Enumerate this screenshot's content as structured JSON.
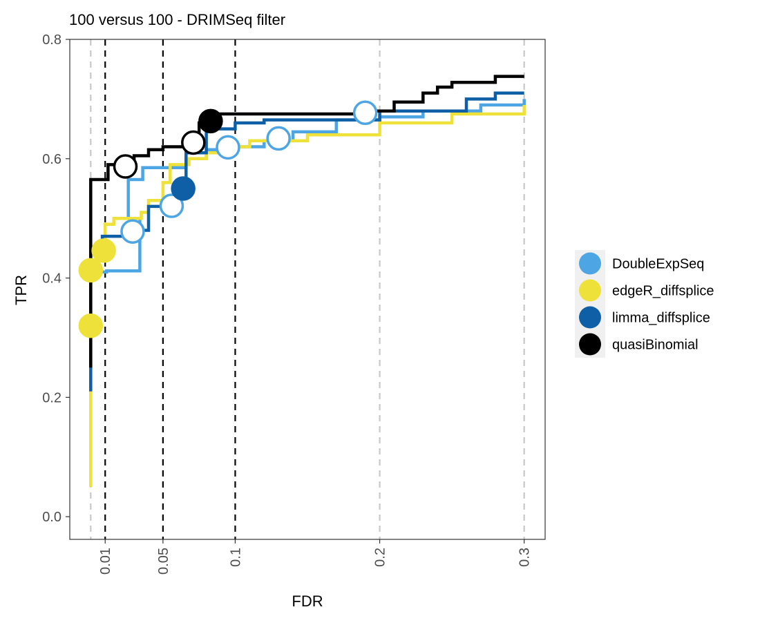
{
  "chart_data": {
    "type": "line",
    "title": "100 versus 100 - DRIMSeq filter",
    "xlabel": "FDR",
    "ylabel": "TPR",
    "xlim": [
      -0.0145,
      0.3145
    ],
    "ylim": [
      -0.038,
      0.8
    ],
    "x_ticks": [
      0.01,
      0.05,
      0.1,
      0.2,
      0.3
    ],
    "x_tick_labels": [
      "0.01",
      "0.05",
      "0.1",
      "0.2",
      "0.3"
    ],
    "y_ticks": [
      0.0,
      0.2,
      0.4,
      0.6,
      0.8
    ],
    "y_tick_labels": [
      "0.0",
      "0.2",
      "0.4",
      "0.6",
      "0.8"
    ],
    "reference_lines": {
      "dashed_black": [
        0.01,
        0.05,
        0.1
      ],
      "dashed_grey": [
        0.0,
        0.2,
        0.3
      ]
    },
    "grid": false,
    "legend_position": "right",
    "series": [
      {
        "name": "DoubleExpSeq",
        "color": "#4DA6E3",
        "line": [
          [
            0.0,
            0.41
          ],
          [
            0.011,
            0.41
          ],
          [
            0.011,
            0.412
          ],
          [
            0.034,
            0.412
          ],
          [
            0.034,
            0.44
          ],
          [
            0.034,
            0.5
          ],
          [
            0.026,
            0.5
          ],
          [
            0.026,
            0.565
          ],
          [
            0.036,
            0.565
          ],
          [
            0.036,
            0.585
          ],
          [
            0.066,
            0.585
          ],
          [
            0.066,
            0.6
          ],
          [
            0.08,
            0.6
          ],
          [
            0.08,
            0.615
          ],
          [
            0.095,
            0.615
          ],
          [
            0.095,
            0.62
          ],
          [
            0.12,
            0.62
          ],
          [
            0.12,
            0.63
          ],
          [
            0.14,
            0.63
          ],
          [
            0.14,
            0.645
          ],
          [
            0.17,
            0.645
          ],
          [
            0.17,
            0.665
          ],
          [
            0.2,
            0.665
          ],
          [
            0.2,
            0.67
          ],
          [
            0.23,
            0.67
          ],
          [
            0.23,
            0.68
          ],
          [
            0.27,
            0.68
          ],
          [
            0.27,
            0.69
          ],
          [
            0.3,
            0.69
          ],
          [
            0.3,
            0.7
          ]
        ],
        "points": [
          {
            "fdr": 0.029,
            "tpr": 0.478,
            "filled": false
          },
          {
            "fdr": 0.056,
            "tpr": 0.521,
            "filled": false
          },
          {
            "fdr": 0.095,
            "tpr": 0.619,
            "filled": false
          },
          {
            "fdr": 0.13,
            "tpr": 0.634,
            "filled": false
          },
          {
            "fdr": 0.19,
            "tpr": 0.677,
            "filled": false
          }
        ]
      },
      {
        "name": "edgeR_diffsplice",
        "color": "#EEE13A",
        "line": [
          [
            0.0,
            0.05
          ],
          [
            0.0,
            0.3
          ],
          [
            0.0,
            0.45
          ],
          [
            0.01,
            0.45
          ],
          [
            0.01,
            0.49
          ],
          [
            0.016,
            0.49
          ],
          [
            0.016,
            0.5
          ],
          [
            0.035,
            0.5
          ],
          [
            0.035,
            0.51
          ],
          [
            0.04,
            0.51
          ],
          [
            0.04,
            0.53
          ],
          [
            0.05,
            0.53
          ],
          [
            0.05,
            0.56
          ],
          [
            0.055,
            0.56
          ],
          [
            0.055,
            0.59
          ],
          [
            0.068,
            0.59
          ],
          [
            0.068,
            0.6
          ],
          [
            0.08,
            0.6
          ],
          [
            0.08,
            0.61
          ],
          [
            0.1,
            0.61
          ],
          [
            0.1,
            0.62
          ],
          [
            0.11,
            0.62
          ],
          [
            0.11,
            0.63
          ],
          [
            0.15,
            0.63
          ],
          [
            0.15,
            0.64
          ],
          [
            0.2,
            0.64
          ],
          [
            0.2,
            0.66
          ],
          [
            0.25,
            0.66
          ],
          [
            0.25,
            0.675
          ],
          [
            0.3,
            0.675
          ],
          [
            0.3,
            0.69
          ]
        ],
        "points": [
          {
            "fdr": 0.0,
            "tpr": 0.32,
            "filled": true
          },
          {
            "fdr": 0.0,
            "tpr": 0.413,
            "filled": true
          },
          {
            "fdr": 0.009,
            "tpr": 0.446,
            "filled": true
          }
        ]
      },
      {
        "name": "limma_diffsplice",
        "color": "#0F5FA6",
        "line": [
          [
            0.0,
            0.21
          ],
          [
            0.0,
            0.25
          ],
          [
            0.0,
            0.45
          ],
          [
            0.008,
            0.45
          ],
          [
            0.008,
            0.47
          ],
          [
            0.026,
            0.47
          ],
          [
            0.026,
            0.48
          ],
          [
            0.04,
            0.48
          ],
          [
            0.04,
            0.52
          ],
          [
            0.06,
            0.52
          ],
          [
            0.06,
            0.55
          ],
          [
            0.066,
            0.55
          ],
          [
            0.066,
            0.61
          ],
          [
            0.08,
            0.61
          ],
          [
            0.08,
            0.65
          ],
          [
            0.1,
            0.65
          ],
          [
            0.1,
            0.66
          ],
          [
            0.12,
            0.66
          ],
          [
            0.12,
            0.665
          ],
          [
            0.2,
            0.665
          ],
          [
            0.2,
            0.68
          ],
          [
            0.26,
            0.68
          ],
          [
            0.26,
            0.7
          ],
          [
            0.28,
            0.7
          ],
          [
            0.28,
            0.71
          ],
          [
            0.3,
            0.71
          ]
        ],
        "points": [
          {
            "fdr": 0.064,
            "tpr": 0.55,
            "filled": true
          }
        ]
      },
      {
        "name": "quasiBinomial",
        "color": "#000000",
        "line": [
          [
            0.0,
            0.25
          ],
          [
            0.0,
            0.565
          ],
          [
            0.012,
            0.565
          ],
          [
            0.012,
            0.59
          ],
          [
            0.02,
            0.59
          ],
          [
            0.02,
            0.6
          ],
          [
            0.03,
            0.6
          ],
          [
            0.03,
            0.605
          ],
          [
            0.04,
            0.605
          ],
          [
            0.04,
            0.615
          ],
          [
            0.05,
            0.615
          ],
          [
            0.05,
            0.62
          ],
          [
            0.07,
            0.62
          ],
          [
            0.07,
            0.635
          ],
          [
            0.075,
            0.635
          ],
          [
            0.075,
            0.66
          ],
          [
            0.085,
            0.66
          ],
          [
            0.085,
            0.675
          ],
          [
            0.19,
            0.675
          ],
          [
            0.19,
            0.68
          ],
          [
            0.21,
            0.68
          ],
          [
            0.21,
            0.695
          ],
          [
            0.23,
            0.695
          ],
          [
            0.23,
            0.71
          ],
          [
            0.24,
            0.71
          ],
          [
            0.24,
            0.72
          ],
          [
            0.25,
            0.72
          ],
          [
            0.25,
            0.728
          ],
          [
            0.28,
            0.728
          ],
          [
            0.28,
            0.738
          ],
          [
            0.3,
            0.738
          ]
        ],
        "points": [
          {
            "fdr": 0.024,
            "tpr": 0.587,
            "filled": false
          },
          {
            "fdr": 0.071,
            "tpr": 0.627,
            "filled": false
          },
          {
            "fdr": 0.083,
            "tpr": 0.663,
            "filled": true
          }
        ]
      }
    ]
  }
}
